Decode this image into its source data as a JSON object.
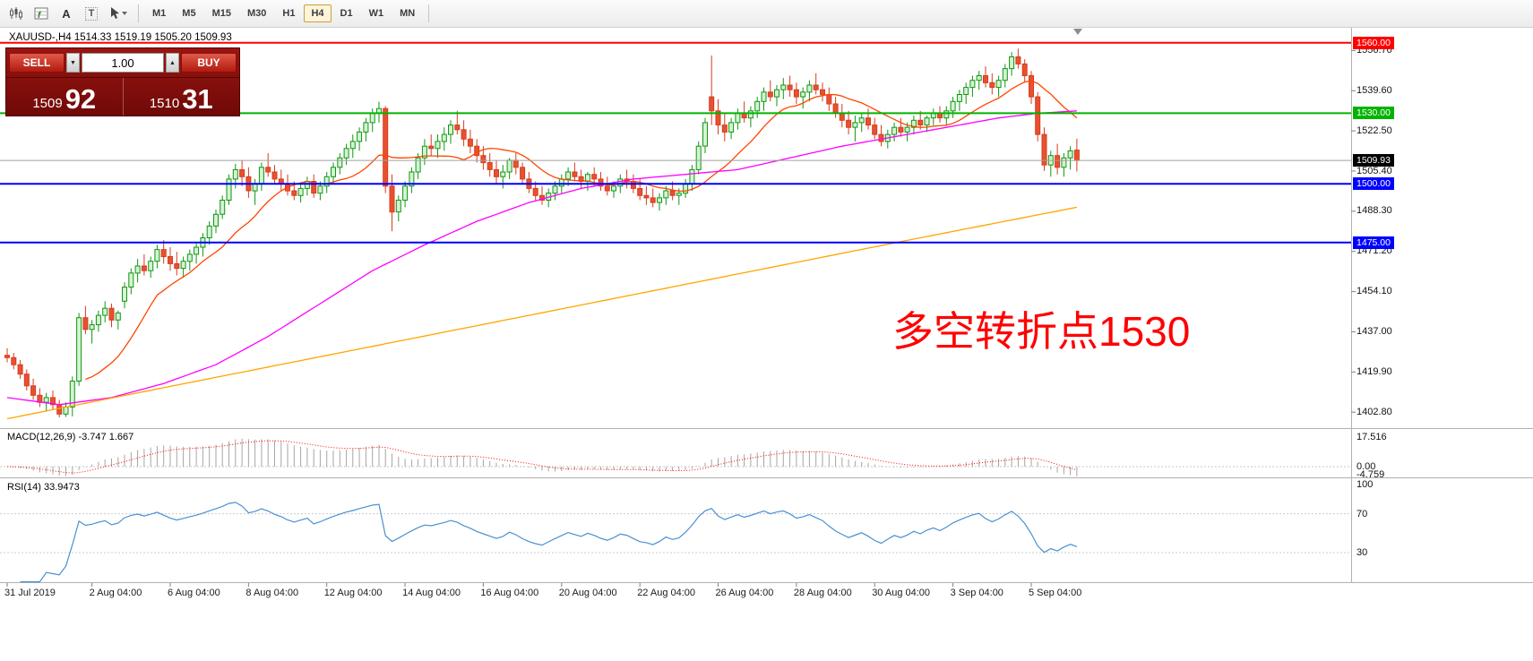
{
  "toolbar": {
    "tools": [
      {
        "name": "chart-type-icon",
        "glyph": "candles"
      },
      {
        "name": "indicators-icon",
        "glyph": "grid-f"
      },
      {
        "name": "label-tool-icon",
        "glyph": "A"
      },
      {
        "name": "text-tool-icon",
        "glyph": "T"
      },
      {
        "name": "cursor-tool-icon",
        "glyph": "cursor"
      }
    ],
    "timeframes": [
      "M1",
      "M5",
      "M15",
      "M30",
      "H1",
      "H4",
      "D1",
      "W1",
      "MN"
    ],
    "active_timeframe": "H4"
  },
  "chart_header": {
    "symbol_line": "XAUUSD-,H4  1514.33 1519.19 1505.20 1509.93"
  },
  "trade_panel": {
    "sell_label": "SELL",
    "buy_label": "BUY",
    "volume": "1.00",
    "volume_down_glyph": "▼",
    "volume_up_glyph": "▲",
    "sell_price_main": "1509",
    "sell_price_big": "92",
    "buy_price_main": "1510",
    "buy_price_big": "31"
  },
  "annotation": {
    "text": "多空转折点1530",
    "color": "#ff0000"
  },
  "axis": {
    "price_ticks": [
      1556.7,
      1539.6,
      1522.5,
      1505.4,
      1488.3,
      1471.2,
      1454.1,
      1437.0,
      1419.9,
      1402.8
    ]
  },
  "bid": {
    "price": 1509.93,
    "label": "1509.93",
    "line_color": "#a0a0a0"
  },
  "hlines": [
    {
      "price": 1560.0,
      "label": "1560.00",
      "color": "#ff0000"
    },
    {
      "price": 1530.0,
      "label": "1530.00",
      "color": "#00b400"
    },
    {
      "price": 1500.0,
      "label": "1500.00",
      "color": "#0000ff"
    },
    {
      "price": 1475.0,
      "label": "1475.00",
      "color": "#0000ff"
    }
  ],
  "macd_panel": {
    "label": "MACD(12,26,9) -3.747 1.667",
    "scale_labels": [
      "17.516",
      "0.00",
      "-4.759"
    ]
  },
  "rsi_panel": {
    "label": "RSI(14) 33.9473",
    "scale_labels": [
      "100",
      "70",
      "30"
    ],
    "levels": [
      70,
      30
    ]
  },
  "date_axis": [
    {
      "label": "31 Jul 2019",
      "bar": 0
    },
    {
      "label": "2 Aug 04:00",
      "bar": 13
    },
    {
      "label": "6 Aug 04:00",
      "bar": 25
    },
    {
      "label": "8 Aug 04:00",
      "bar": 37
    },
    {
      "label": "12 Aug 04:00",
      "bar": 49
    },
    {
      "label": "14 Aug 04:00",
      "bar": 61
    },
    {
      "label": "16 Aug 04:00",
      "bar": 73
    },
    {
      "label": "20 Aug 04:00",
      "bar": 85
    },
    {
      "label": "22 Aug 04:00",
      "bar": 97
    },
    {
      "label": "26 Aug 04:00",
      "bar": 109
    },
    {
      "label": "28 Aug 04:00",
      "bar": 121
    },
    {
      "label": "30 Aug 04:00",
      "bar": 133
    },
    {
      "label": "3 Sep 04:00",
      "bar": 145
    },
    {
      "label": "5 Sep 04:00",
      "bar": 157
    }
  ],
  "chart_data": {
    "type": "candlestick",
    "symbol": "XAUUSD-",
    "timeframe": "H4",
    "current_bar": {
      "open": 1514.33,
      "high": 1519.19,
      "low": 1505.2,
      "close": 1509.93
    },
    "price_axis_range": [
      1396,
      1566
    ],
    "candle_colors": {
      "up_stroke": "#119611",
      "up_fill": "#d4f3d4",
      "down_stroke": "#d63c1e",
      "down_fill": "#e8512f"
    },
    "ohlc": [
      [
        1427,
        1430,
        1424,
        1426
      ],
      [
        1426,
        1428,
        1421,
        1423
      ],
      [
        1423,
        1425,
        1417,
        1419
      ],
      [
        1419,
        1421,
        1412,
        1414
      ],
      [
        1414,
        1417,
        1408,
        1410
      ],
      [
        1410,
        1413,
        1405,
        1407
      ],
      [
        1407,
        1411,
        1403,
        1409
      ],
      [
        1409,
        1412,
        1404,
        1406
      ],
      [
        1406,
        1408,
        1400.6,
        1402
      ],
      [
        1402,
        1407,
        1400.8,
        1405
      ],
      [
        1405,
        1418,
        1401,
        1416
      ],
      [
        1416,
        1445,
        1414,
        1443
      ],
      [
        1443,
        1448,
        1436,
        1438
      ],
      [
        1438,
        1442,
        1432,
        1440
      ],
      [
        1440,
        1446,
        1437,
        1444
      ],
      [
        1444,
        1450,
        1441,
        1447
      ],
      [
        1447,
        1449,
        1439,
        1442
      ],
      [
        1442,
        1446,
        1438,
        1445
      ],
      [
        1450,
        1458,
        1447,
        1456
      ],
      [
        1456,
        1464,
        1453,
        1462
      ],
      [
        1462,
        1468,
        1458,
        1465
      ],
      [
        1465,
        1470,
        1461,
        1463
      ],
      [
        1463,
        1469,
        1460,
        1467
      ],
      [
        1467,
        1474,
        1464,
        1472
      ],
      [
        1472,
        1476,
        1466,
        1469
      ],
      [
        1469,
        1473,
        1463,
        1466
      ],
      [
        1466,
        1471,
        1461,
        1464
      ],
      [
        1464,
        1469,
        1460,
        1467
      ],
      [
        1467,
        1472,
        1463,
        1470
      ],
      [
        1470,
        1475,
        1466,
        1473
      ],
      [
        1473,
        1479,
        1469,
        1477
      ],
      [
        1477,
        1484,
        1474,
        1482
      ],
      [
        1482,
        1489,
        1479,
        1487
      ],
      [
        1487,
        1495,
        1485,
        1493
      ],
      [
        1493,
        1504,
        1491,
        1502
      ],
      [
        1502,
        1508.5,
        1498,
        1506
      ],
      [
        1506,
        1510,
        1499,
        1503
      ],
      [
        1503,
        1507,
        1494,
        1497
      ],
      [
        1497,
        1502,
        1491,
        1500
      ],
      [
        1500,
        1509,
        1497,
        1507
      ],
      [
        1507,
        1513,
        1503,
        1505
      ],
      [
        1505,
        1508,
        1500,
        1502
      ],
      [
        1502,
        1506,
        1497,
        1500
      ],
      [
        1500,
        1504,
        1495,
        1497
      ],
      [
        1497,
        1501,
        1493,
        1495
      ],
      [
        1495,
        1500,
        1492,
        1498
      ],
      [
        1498,
        1503,
        1495,
        1501
      ],
      [
        1501,
        1504,
        1494,
        1496
      ],
      [
        1496,
        1501,
        1493,
        1499
      ],
      [
        1499,
        1505,
        1496,
        1503
      ],
      [
        1503,
        1509,
        1500,
        1507
      ],
      [
        1507,
        1513,
        1504,
        1511
      ],
      [
        1511,
        1517,
        1508,
        1515
      ],
      [
        1515,
        1521,
        1511,
        1518
      ],
      [
        1518,
        1524,
        1514,
        1522
      ],
      [
        1522,
        1528,
        1518,
        1526
      ],
      [
        1526,
        1532,
        1522,
        1530
      ],
      [
        1530,
        1534.9,
        1526,
        1532
      ],
      [
        1532,
        1533,
        1496,
        1499
      ],
      [
        1499,
        1504,
        1479.8,
        1488
      ],
      [
        1488,
        1495,
        1484,
        1493
      ],
      [
        1493,
        1501,
        1490,
        1499
      ],
      [
        1499,
        1507,
        1496,
        1505
      ],
      [
        1505,
        1513,
        1502,
        1511
      ],
      [
        1511,
        1519,
        1508,
        1516
      ],
      [
        1516,
        1521,
        1512,
        1515
      ],
      [
        1515,
        1521,
        1511,
        1518
      ],
      [
        1518,
        1524,
        1514,
        1521
      ],
      [
        1521,
        1527,
        1517,
        1525
      ],
      [
        1525,
        1531.1,
        1521,
        1523
      ],
      [
        1523,
        1527,
        1516,
        1519
      ],
      [
        1519,
        1523,
        1513,
        1516
      ],
      [
        1516,
        1519,
        1509,
        1512
      ],
      [
        1512,
        1516,
        1506,
        1509
      ],
      [
        1509,
        1513,
        1503,
        1506
      ],
      [
        1506,
        1510,
        1500,
        1503
      ],
      [
        1503,
        1508,
        1498,
        1505
      ],
      [
        1505,
        1511,
        1502,
        1510
      ],
      [
        1510,
        1513,
        1504,
        1507
      ],
      [
        1507,
        1509,
        1500,
        1502
      ],
      [
        1502,
        1505,
        1496,
        1498
      ],
      [
        1498,
        1501,
        1493,
        1495
      ],
      [
        1495,
        1499,
        1491,
        1493
      ],
      [
        1493,
        1498,
        1490,
        1496
      ],
      [
        1496,
        1501,
        1493,
        1499
      ],
      [
        1499,
        1504,
        1496,
        1502
      ],
      [
        1502,
        1507,
        1499,
        1505
      ],
      [
        1505,
        1509,
        1501,
        1503
      ],
      [
        1503,
        1506,
        1498,
        1501
      ],
      [
        1501,
        1505,
        1497,
        1504
      ],
      [
        1504,
        1507,
        1499,
        1502
      ],
      [
        1502,
        1505,
        1497,
        1499
      ],
      [
        1499,
        1503,
        1495,
        1497
      ],
      [
        1497,
        1501,
        1494,
        1499
      ],
      [
        1499,
        1504,
        1496,
        1502
      ],
      [
        1502,
        1506,
        1498,
        1501
      ],
      [
        1501,
        1504,
        1496,
        1498
      ],
      [
        1498,
        1502,
        1493,
        1495
      ],
      [
        1495,
        1499,
        1491,
        1494
      ],
      [
        1494,
        1498,
        1490,
        1492
      ],
      [
        1492,
        1496,
        1488.6,
        1494
      ],
      [
        1494,
        1499,
        1491,
        1497
      ],
      [
        1497,
        1501,
        1493,
        1495
      ],
      [
        1495,
        1498,
        1491,
        1496
      ],
      [
        1496,
        1502,
        1494,
        1500
      ],
      [
        1500,
        1508,
        1497,
        1506
      ],
      [
        1506,
        1518,
        1504,
        1516
      ],
      [
        1516,
        1528,
        1513,
        1526
      ],
      [
        1537,
        1554.6,
        1525,
        1531
      ],
      [
        1531,
        1536,
        1521,
        1525
      ],
      [
        1525,
        1530,
        1518,
        1522
      ],
      [
        1522,
        1528,
        1519,
        1526
      ],
      [
        1526,
        1532,
        1523,
        1530
      ],
      [
        1530,
        1535,
        1526,
        1528
      ],
      [
        1528,
        1533,
        1524,
        1531
      ],
      [
        1531,
        1537,
        1528,
        1535
      ],
      [
        1535,
        1541,
        1531,
        1539
      ],
      [
        1539,
        1544,
        1535,
        1537
      ],
      [
        1537,
        1542,
        1533,
        1540
      ],
      [
        1540,
        1545,
        1536,
        1542
      ],
      [
        1542,
        1546,
        1537,
        1540
      ],
      [
        1540,
        1543,
        1534,
        1537
      ],
      [
        1537,
        1541,
        1532,
        1539
      ],
      [
        1539,
        1544,
        1535,
        1542
      ],
      [
        1542,
        1547,
        1538,
        1540
      ],
      [
        1540,
        1543,
        1535,
        1538
      ],
      [
        1538,
        1541,
        1531,
        1534
      ],
      [
        1534,
        1537,
        1528,
        1530
      ],
      [
        1530,
        1534,
        1524,
        1527
      ],
      [
        1527,
        1531,
        1521,
        1524
      ],
      [
        1524,
        1529,
        1518,
        1526
      ],
      [
        1526,
        1530,
        1522,
        1528
      ],
      [
        1528,
        1532,
        1523,
        1525
      ],
      [
        1525,
        1528,
        1519,
        1521
      ],
      [
        1521,
        1525,
        1516,
        1518
      ],
      [
        1518,
        1523,
        1515,
        1521
      ],
      [
        1521,
        1526,
        1518,
        1524
      ],
      [
        1524,
        1528,
        1520,
        1522
      ],
      [
        1522,
        1526,
        1518,
        1524
      ],
      [
        1524,
        1529,
        1521,
        1527
      ],
      [
        1527,
        1531,
        1523,
        1525
      ],
      [
        1525,
        1529,
        1522,
        1528
      ],
      [
        1528,
        1532,
        1525,
        1530
      ],
      [
        1530,
        1533,
        1526,
        1528
      ],
      [
        1528,
        1533,
        1525,
        1531
      ],
      [
        1531,
        1537,
        1528,
        1535
      ],
      [
        1535,
        1540,
        1531,
        1538
      ],
      [
        1538,
        1543,
        1534,
        1541
      ],
      [
        1541,
        1546,
        1537,
        1544
      ],
      [
        1544,
        1548,
        1540,
        1546
      ],
      [
        1546,
        1550,
        1541,
        1543
      ],
      [
        1543,
        1547,
        1538,
        1541
      ],
      [
        1541,
        1546,
        1537,
        1544
      ],
      [
        1544,
        1551,
        1541,
        1549
      ],
      [
        1549,
        1556,
        1546,
        1554
      ],
      [
        1554,
        1557.5,
        1549,
        1551
      ],
      [
        1551,
        1553,
        1543,
        1546
      ],
      [
        1546,
        1548,
        1534,
        1537
      ],
      [
        1537,
        1539,
        1518,
        1521
      ],
      [
        1521,
        1524,
        1505.5,
        1508
      ],
      [
        1508,
        1514,
        1503,
        1512
      ],
      [
        1512,
        1517,
        1504,
        1507
      ],
      [
        1507,
        1513,
        1503,
        1511
      ],
      [
        1511,
        1516,
        1506,
        1514
      ],
      [
        1514.3,
        1519.2,
        1505.2,
        1509.9
      ]
    ],
    "ma_fast": {
      "name": "ma-fast",
      "period": 13,
      "color": "#ff4500"
    },
    "ma_mid": {
      "name": "ma-mid",
      "color": "#ff00ff",
      "anchors": [
        [
          0,
          1409
        ],
        [
          8,
          1406
        ],
        [
          16,
          1409
        ],
        [
          24,
          1415
        ],
        [
          32,
          1423
        ],
        [
          40,
          1435
        ],
        [
          48,
          1449
        ],
        [
          56,
          1463
        ],
        [
          64,
          1474
        ],
        [
          72,
          1484
        ],
        [
          80,
          1492
        ],
        [
          88,
          1498
        ],
        [
          96,
          1502
        ],
        [
          104,
          1504
        ],
        [
          112,
          1506
        ],
        [
          120,
          1511
        ],
        [
          128,
          1516
        ],
        [
          136,
          1520
        ],
        [
          144,
          1524
        ],
        [
          152,
          1528
        ],
        [
          158,
          1530
        ],
        [
          164,
          1531
        ]
      ]
    },
    "ma_slow": {
      "name": "ma-slow",
      "color": "#ffa500",
      "anchors": [
        [
          0,
          1400
        ],
        [
          20,
          1411
        ],
        [
          40,
          1422
        ],
        [
          60,
          1433
        ],
        [
          80,
          1444
        ],
        [
          100,
          1455
        ],
        [
          120,
          1466
        ],
        [
          140,
          1477
        ],
        [
          164,
          1490
        ]
      ]
    },
    "indicators": {
      "macd": {
        "fast": 12,
        "slow": 26,
        "signal": 9,
        "current_main": -3.747,
        "current_signal": 1.667
      },
      "rsi": {
        "period": 14,
        "current": 33.9473
      }
    }
  }
}
